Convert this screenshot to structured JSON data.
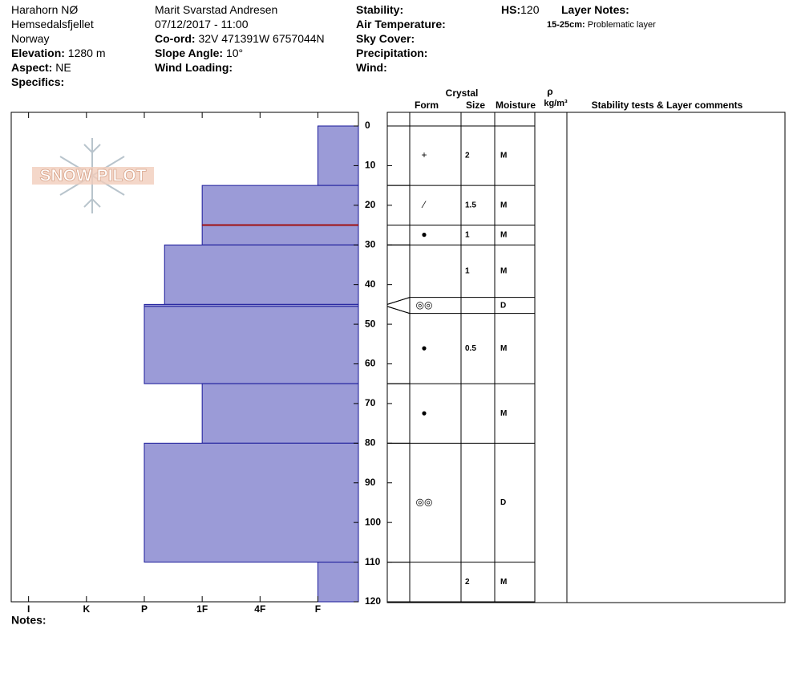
{
  "header": {
    "location": [
      "Harahorn NØ",
      "Hemsedalsfjellet",
      "Norway"
    ],
    "elevation": {
      "label": "Elevation:",
      "value": "1280 m"
    },
    "aspect": {
      "label": "Aspect:",
      "value": "NE"
    },
    "specifics": {
      "label": "Specifics:"
    },
    "observer": "Marit Svarstad Andresen",
    "datetime": "07/12/2017 - 11:00",
    "coord": {
      "label": "Co-ord:",
      "value": "32V 471391W 6757044N"
    },
    "slope": {
      "label": "Slope Angle:",
      "value": "10°"
    },
    "wind_loading": {
      "label": "Wind Loading:"
    },
    "conditions": [
      "Stability:",
      "Air Temperature:",
      "Sky Cover:",
      "Precipitation:",
      "Wind:"
    ],
    "hs": {
      "label": "HS:",
      "value": 120
    },
    "layer_notes": {
      "label": "Layer Notes:",
      "items": [
        {
          "range": "15-25cm:",
          "text": "Problematic layer"
        }
      ]
    }
  },
  "profile": {
    "type": "snow-profile",
    "logo": "SNOW PILOT",
    "ylim": [
      0,
      120
    ],
    "yticks": [
      0,
      10,
      20,
      30,
      40,
      50,
      60,
      70,
      80,
      90,
      100,
      110,
      120
    ],
    "xlim": [
      0.7,
      6.7
    ],
    "xticks": [
      {
        "value": 1,
        "label": "I"
      },
      {
        "value": 2,
        "label": "K"
      },
      {
        "value": 3,
        "label": "P"
      },
      {
        "value": 4,
        "label": "1F"
      },
      {
        "value": 5,
        "label": "4F"
      },
      {
        "value": 6,
        "label": "F"
      }
    ],
    "bar_color": "#9b9bd7",
    "problem_line": {
      "depth": 25,
      "color": "#a01010"
    },
    "columns": {
      "crystal": "Crystal",
      "form": "Form",
      "size": "Size",
      "moisture": "Moisture",
      "rho": "ρ",
      "density_unit": "kg/m³",
      "comments": "Stability tests & Layer comments"
    },
    "layers": [
      {
        "top": 0,
        "bottom": 15,
        "hardness": 6,
        "form": "+",
        "size": 2,
        "moisture": "M"
      },
      {
        "top": 15,
        "bottom": 25,
        "hardness": 4,
        "form": "⁄",
        "size": 1.5,
        "moisture": "M"
      },
      {
        "top": 25,
        "bottom": 30,
        "hardness": 4,
        "form": "●",
        "size": 1,
        "moisture": "M"
      },
      {
        "top": 30,
        "bottom": 45,
        "hardness": 3.35,
        "form": null,
        "size": 1,
        "moisture": "M"
      },
      {
        "top": 45,
        "bottom": 45.5,
        "hardness": 3,
        "form": "◎◎",
        "size": null,
        "moisture": "D"
      },
      {
        "top": 45.5,
        "bottom": 65,
        "hardness": 3,
        "form": "●",
        "size": 0.5,
        "moisture": "M"
      },
      {
        "top": 65,
        "bottom": 80,
        "hardness": 4,
        "form": "●",
        "size": null,
        "moisture": "M"
      },
      {
        "top": 80,
        "bottom": 110,
        "hardness": 3,
        "form": "◎◎",
        "size": null,
        "moisture": "D"
      },
      {
        "top": 110,
        "bottom": 120,
        "hardness": 6,
        "form": null,
        "size": 2,
        "moisture": "M"
      }
    ],
    "notes_label": "Notes:"
  }
}
